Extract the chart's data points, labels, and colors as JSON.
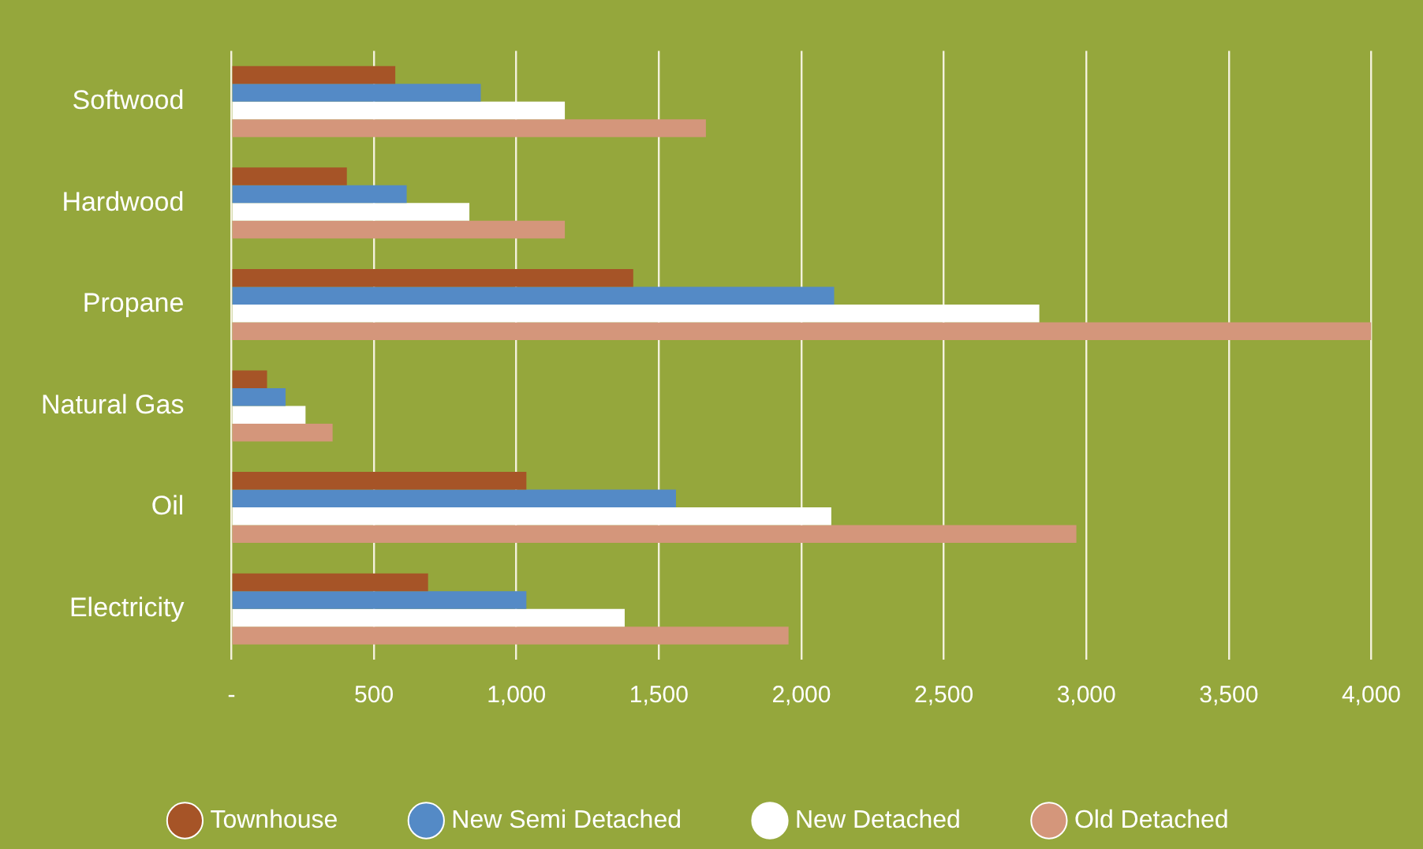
{
  "chart_data": {
    "type": "bar",
    "orientation": "horizontal",
    "categories": [
      "Softwood",
      "Hardwood",
      "Propane",
      "Natural Gas",
      "Oil",
      "Electricity"
    ],
    "series": [
      {
        "name": "Townhouse",
        "color": "#a65427",
        "values": [
          575,
          405,
          1410,
          125,
          1035,
          690
        ]
      },
      {
        "name": "New Semi Detached",
        "color": "#548ac6",
        "values": [
          875,
          615,
          2115,
          190,
          1560,
          1035
        ]
      },
      {
        "name": "New Detached",
        "color": "#ffffff",
        "values": [
          1170,
          835,
          2835,
          260,
          2105,
          1380
        ]
      },
      {
        "name": "Old Detached",
        "color": "#d4967b",
        "values": [
          1665,
          1170,
          4000,
          355,
          2965,
          1955
        ]
      }
    ],
    "xlim": [
      0,
      4000
    ],
    "xticks": [
      {
        "value": 0,
        "label": "-"
      },
      500,
      {
        "value": 1000,
        "label": "1,000"
      },
      {
        "value": 1500,
        "label": "1,500"
      },
      {
        "value": 2000,
        "label": "2,000"
      },
      {
        "value": 2500,
        "label": "2,500"
      },
      {
        "value": 3000,
        "label": "3,000"
      },
      {
        "value": 3500,
        "label": "3,500"
      },
      {
        "value": 4000,
        "label": "4,000"
      }
    ],
    "grid": "x",
    "legend": "bottom",
    "marker": "circle"
  }
}
